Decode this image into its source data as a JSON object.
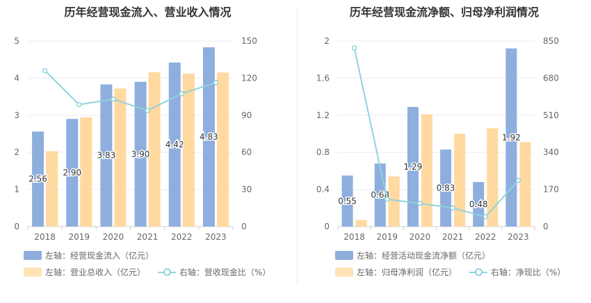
{
  "colors": {
    "blue": "#8eaedd",
    "orange": "#ffd9a0",
    "line": "#8fd3dc"
  },
  "chart_data": [
    {
      "type": "bar",
      "title": "历年经营现金流入、营业收入情况",
      "categories": [
        "2018",
        "2019",
        "2020",
        "2021",
        "2022",
        "2023"
      ],
      "series": [
        {
          "name": "左轴：经营现金流入（亿元）",
          "axis": "left",
          "values": [
            2.56,
            2.9,
            3.83,
            3.9,
            4.42,
            4.83
          ],
          "labels": [
            "2.56",
            "2.90",
            "3.83",
            "3.90",
            "4.42",
            "4.83"
          ]
        },
        {
          "name": "左轴：营业总收入（亿元）",
          "axis": "left",
          "values": [
            2.03,
            2.94,
            3.72,
            4.16,
            4.12,
            4.15
          ]
        },
        {
          "name": "右轴：营收现金比（%）",
          "axis": "right",
          "type": "line",
          "values": [
            126.1,
            98.6,
            103.0,
            93.8,
            107.4,
            116.4
          ]
        }
      ],
      "ylim_left": [
        0,
        5
      ],
      "yticks_left": [
        "0",
        "1",
        "2",
        "3",
        "4",
        "5"
      ],
      "ylim_right": [
        0,
        150
      ],
      "yticks_right": [
        "0",
        "30",
        "60",
        "90",
        "120",
        "150"
      ],
      "legend_position": "bottom"
    },
    {
      "type": "bar",
      "title": "历年经营现金流净额、归母净利润情况",
      "categories": [
        "2018",
        "2019",
        "2020",
        "2021",
        "2022",
        "2023"
      ],
      "series": [
        {
          "name": "左轴：经营活动现金流净额（亿元）",
          "axis": "left",
          "values": [
            0.55,
            0.68,
            1.29,
            0.83,
            0.48,
            1.92
          ],
          "labels": [
            "0.55",
            "0.68",
            "1.29",
            "0.83",
            "0.48",
            "1.92"
          ]
        },
        {
          "name": "左轴：归母净利润（亿元）",
          "axis": "left",
          "values": [
            0.07,
            0.54,
            1.21,
            1.0,
            1.06,
            0.91
          ]
        },
        {
          "name": "右轴：净现比（%）",
          "axis": "right",
          "type": "line",
          "values": [
            818,
            125,
            106,
            85,
            45,
            211
          ]
        }
      ],
      "ylim_left": [
        0,
        2
      ],
      "yticks_left": [
        "0",
        "0.4",
        "0.8",
        "1.2",
        "1.6",
        "2"
      ],
      "ylim_right": [
        0,
        850
      ],
      "yticks_right": [
        "0",
        "170",
        "340",
        "510",
        "680",
        "850"
      ],
      "legend_position": "bottom"
    }
  ]
}
